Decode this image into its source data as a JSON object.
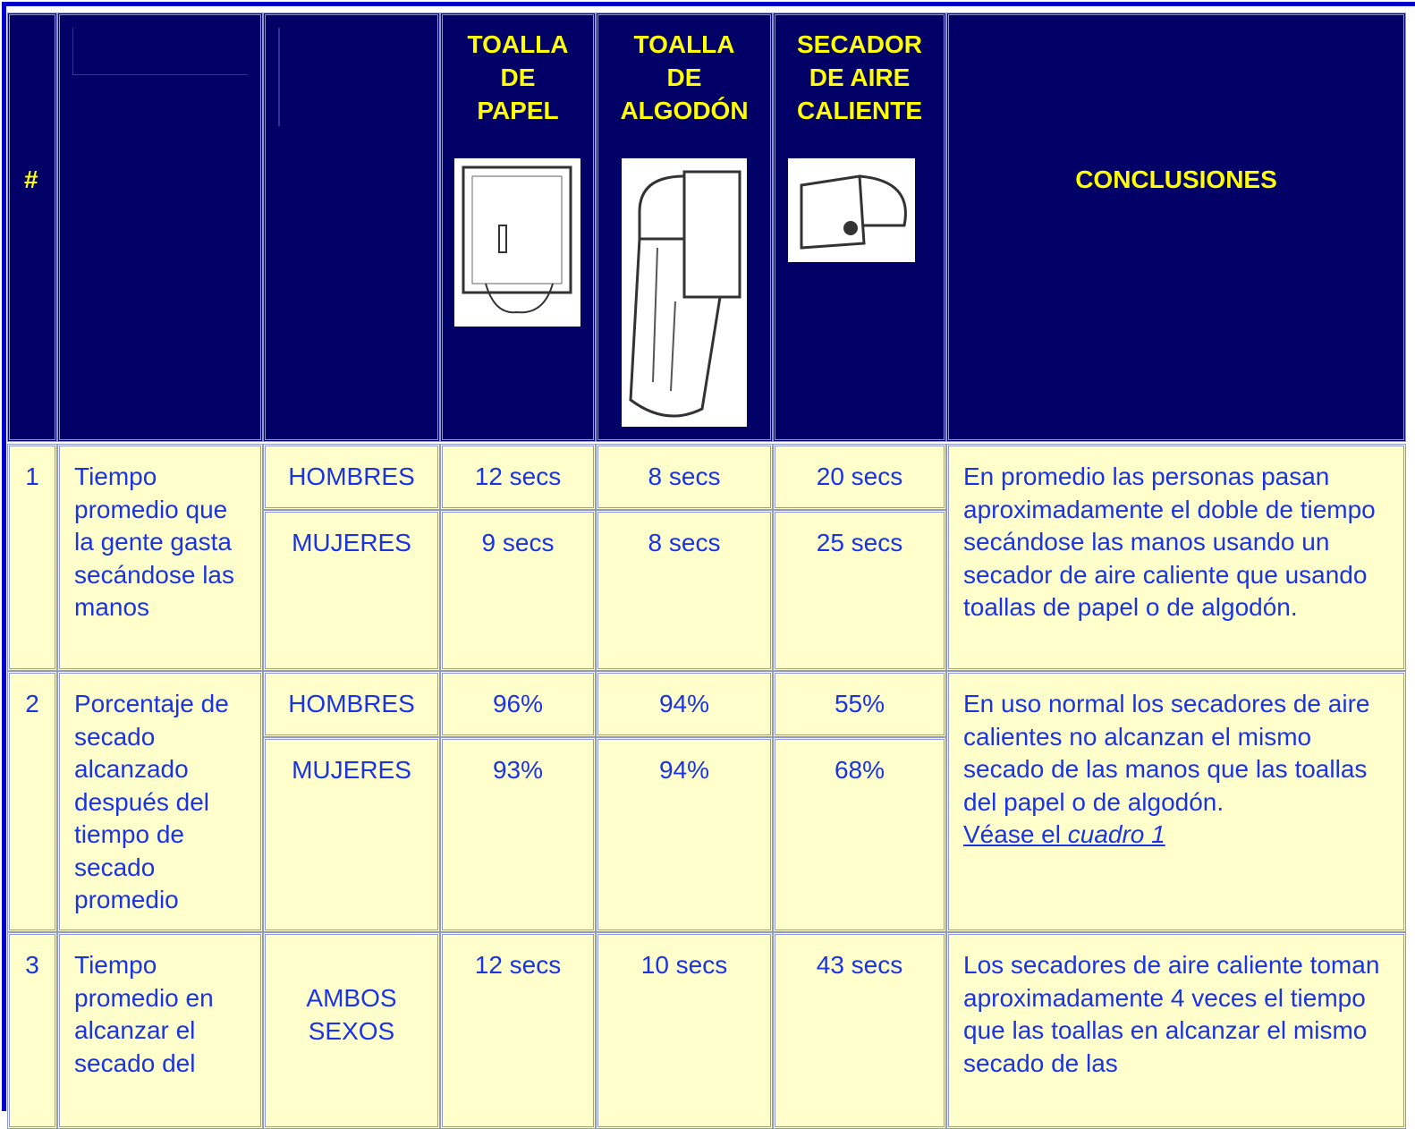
{
  "header": {
    "hash": "#",
    "columns": [
      {
        "lines": [
          "TOALLA",
          "DE",
          "PAPEL"
        ]
      },
      {
        "lines": [
          "TOALLA",
          "DE",
          "ALGODÓN"
        ]
      },
      {
        "lines": [
          "SECADOR",
          "DE AIRE",
          "CALIENTE"
        ]
      }
    ],
    "conclusions": "CONCLUSIONES"
  },
  "rows": [
    {
      "number": "1",
      "label": "Tiempo promedio que la gente gasta secándose las manos",
      "groups": [
        {
          "group": "HOMBRES",
          "values": [
            "12 secs",
            "8 secs",
            "20 secs"
          ]
        },
        {
          "group": "MUJERES",
          "values": [
            "9 secs",
            "8 secs",
            "25 secs"
          ]
        }
      ],
      "conclusion": "En promedio las personas pasan aproximadamente el doble de tiempo secándose las manos usando un secador de aire caliente que usando  toallas de papel o de algodón."
    },
    {
      "number": "2",
      "label": "Porcentaje de secado alcanzado después del tiempo de secado promedio",
      "groups": [
        {
          "group": "HOMBRES",
          "values": [
            "96%",
            "94%",
            "55%"
          ]
        },
        {
          "group": "MUJERES",
          "values": [
            "93%",
            "94%",
            "68%"
          ]
        }
      ],
      "conclusion": "En uso normal los secadores de aire calientes no alcanzan el mismo secado de las manos que las toallas del papel o de algodón.",
      "link_prefix": "Véase el",
      "link_italic": "cuadro 1"
    },
    {
      "number": "3",
      "label": "Tiempo promedio en alcanzar el secado del",
      "groups": [
        {
          "group": "AMBOS SEXOS",
          "values": [
            "12 secs",
            "10 secs",
            "43 secs"
          ]
        }
      ],
      "conclusion": "Los secadores de aire caliente toman aproximadamente 4 veces el tiempo que las toallas en alcanzar el mismo secado de las"
    }
  ]
}
